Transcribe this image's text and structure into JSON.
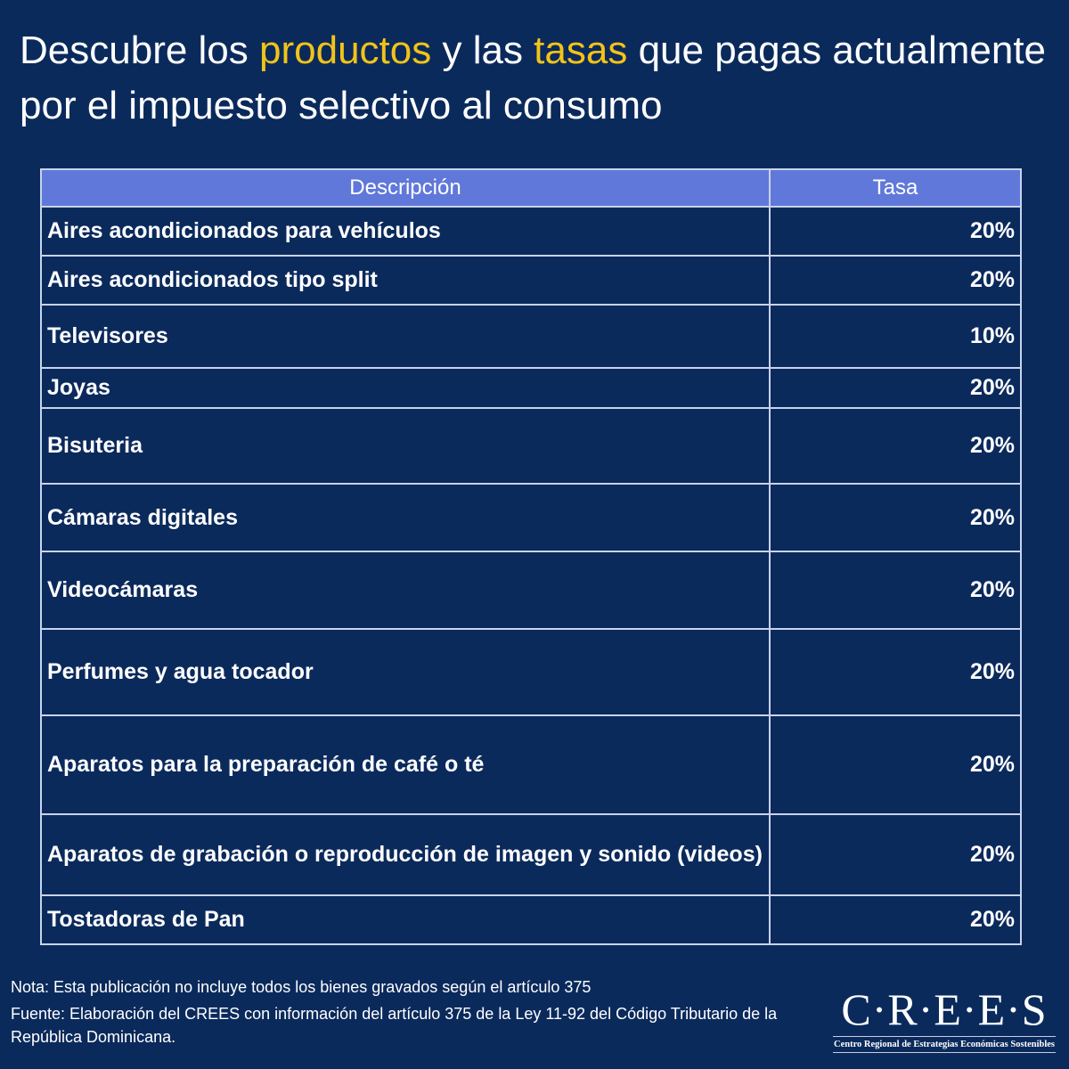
{
  "title": {
    "part1": "Descubre los ",
    "highlight1": "productos",
    "part2": " y las ",
    "highlight2": "tasas",
    "part3": " que pagas actualmente por el impuesto selectivo al consumo"
  },
  "colors": {
    "background": "#0b2a5c",
    "header": "#6078d9",
    "highlight": "#f2c318"
  },
  "table": {
    "headers": [
      "Descripción",
      "Tasa"
    ],
    "rows": [
      {
        "description": "Aires acondicionados para vehículos",
        "rate": "20%"
      },
      {
        "description": "Aires acondicionados tipo split",
        "rate": "20%"
      },
      {
        "description": "Televisores",
        "rate": "10%"
      },
      {
        "description": "Joyas",
        "rate": "20%"
      },
      {
        "description": "Bisuteria",
        "rate": "20%"
      },
      {
        "description": "Cámaras digitales",
        "rate": "20%"
      },
      {
        "description": "Videocámaras",
        "rate": "20%"
      },
      {
        "description": "Perfumes y agua tocador",
        "rate": "20%"
      },
      {
        "description": "Aparatos para la preparación de café o té",
        "rate": "20%"
      },
      {
        "description": "Aparatos de grabación o reproducción de imagen y sonido (videos)",
        "rate": "20%"
      },
      {
        "description": "Tostadoras de Pan",
        "rate": "20%"
      }
    ]
  },
  "notes": {
    "nota": "Nota: Esta publicación no incluye todos los bienes gravados según el artículo 375",
    "fuente": "Fuente: Elaboración del CREES con información del artículo 375 de la Ley 11-92 del Código Tributario de la República Dominicana."
  },
  "logo": {
    "name": "C·R·E·E·S",
    "subtitle": "Centro Regional de Estrategias Económicas Sostenibles"
  }
}
